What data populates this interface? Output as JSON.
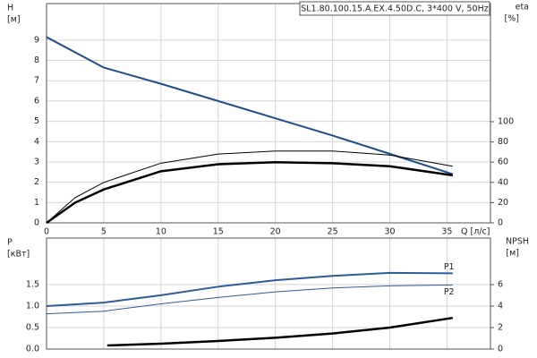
{
  "chart_data": [
    {
      "type": "line",
      "title": "SL1.80.100.15.A.EX.4.50D.C, 3*400 V, 50Hz",
      "y_label": "H",
      "y_unit": "[м]",
      "y2_label": "eta",
      "y2_unit": "[%]",
      "x_label": "Q [л/с]",
      "xlim": [
        0,
        38.8
      ],
      "xticks": [
        0,
        5,
        10,
        15,
        20,
        25,
        30,
        35
      ],
      "ylim": [
        0,
        10.8
      ],
      "yticks": [
        0,
        1,
        2,
        3,
        4,
        5,
        6,
        7,
        8,
        9
      ],
      "y2lim": [
        0,
        216.8
      ],
      "y2ticks": [
        0,
        20,
        40,
        60,
        80,
        100
      ],
      "grid": true,
      "series": [
        {
          "color": "#1f4e8c",
          "width": 2,
          "x": [
            0,
            5,
            10,
            15,
            20,
            25,
            30,
            35.5
          ],
          "values": [
            9.15,
            7.65,
            6.85,
            6.0,
            5.15,
            4.3,
            3.4,
            2.4
          ]
        },
        {
          "color": "#000000",
          "width": 1,
          "axis": "y2",
          "x": [
            0,
            2.5,
            5,
            10,
            15,
            20,
            25,
            30,
            35.5
          ],
          "values": [
            0,
            25,
            40,
            59,
            68,
            71,
            71,
            67,
            56
          ]
        },
        {
          "color": "#000000",
          "width": 2.5,
          "axis": "y2",
          "x": [
            0,
            2.5,
            5,
            10,
            15,
            20,
            25,
            30,
            35.5
          ],
          "values": [
            0,
            20,
            33,
            51,
            58,
            60,
            59,
            56,
            47
          ]
        }
      ]
    },
    {
      "type": "line",
      "y_label": "P",
      "y_unit": "[кВт]",
      "y2_label": "NPSH",
      "y2_unit": "[м]",
      "xlim": [
        0,
        38.8
      ],
      "ylim": [
        0,
        2.58
      ],
      "yticks": [
        {
          "value": 0,
          "label": "0.0"
        },
        0.5,
        {
          "value": 1,
          "label": "1.0"
        },
        1.5
      ],
      "y2lim": [
        0,
        10.33
      ],
      "y2ticks": [
        0,
        2,
        4,
        6
      ],
      "grid": true,
      "series": [
        {
          "name": "P1",
          "color": "#2e5c9a",
          "width": 2,
          "x": [
            0,
            5,
            10,
            15,
            20,
            25,
            30,
            35.5
          ],
          "values": [
            1.0,
            1.08,
            1.25,
            1.45,
            1.6,
            1.7,
            1.77,
            1.76
          ]
        },
        {
          "name": "P2",
          "color": "#2e5c9a",
          "width": 1,
          "x": [
            0,
            5,
            10,
            15,
            20,
            25,
            30,
            35.5
          ],
          "values": [
            0.82,
            0.88,
            1.05,
            1.2,
            1.33,
            1.42,
            1.47,
            1.49
          ]
        },
        {
          "color": "#000000",
          "width": 2.5,
          "axis": "y2",
          "x": [
            5.3,
            10,
            15,
            20,
            25,
            30,
            35.5
          ],
          "values": [
            0.33,
            0.5,
            0.75,
            1.05,
            1.45,
            2.0,
            2.9
          ]
        }
      ]
    }
  ]
}
